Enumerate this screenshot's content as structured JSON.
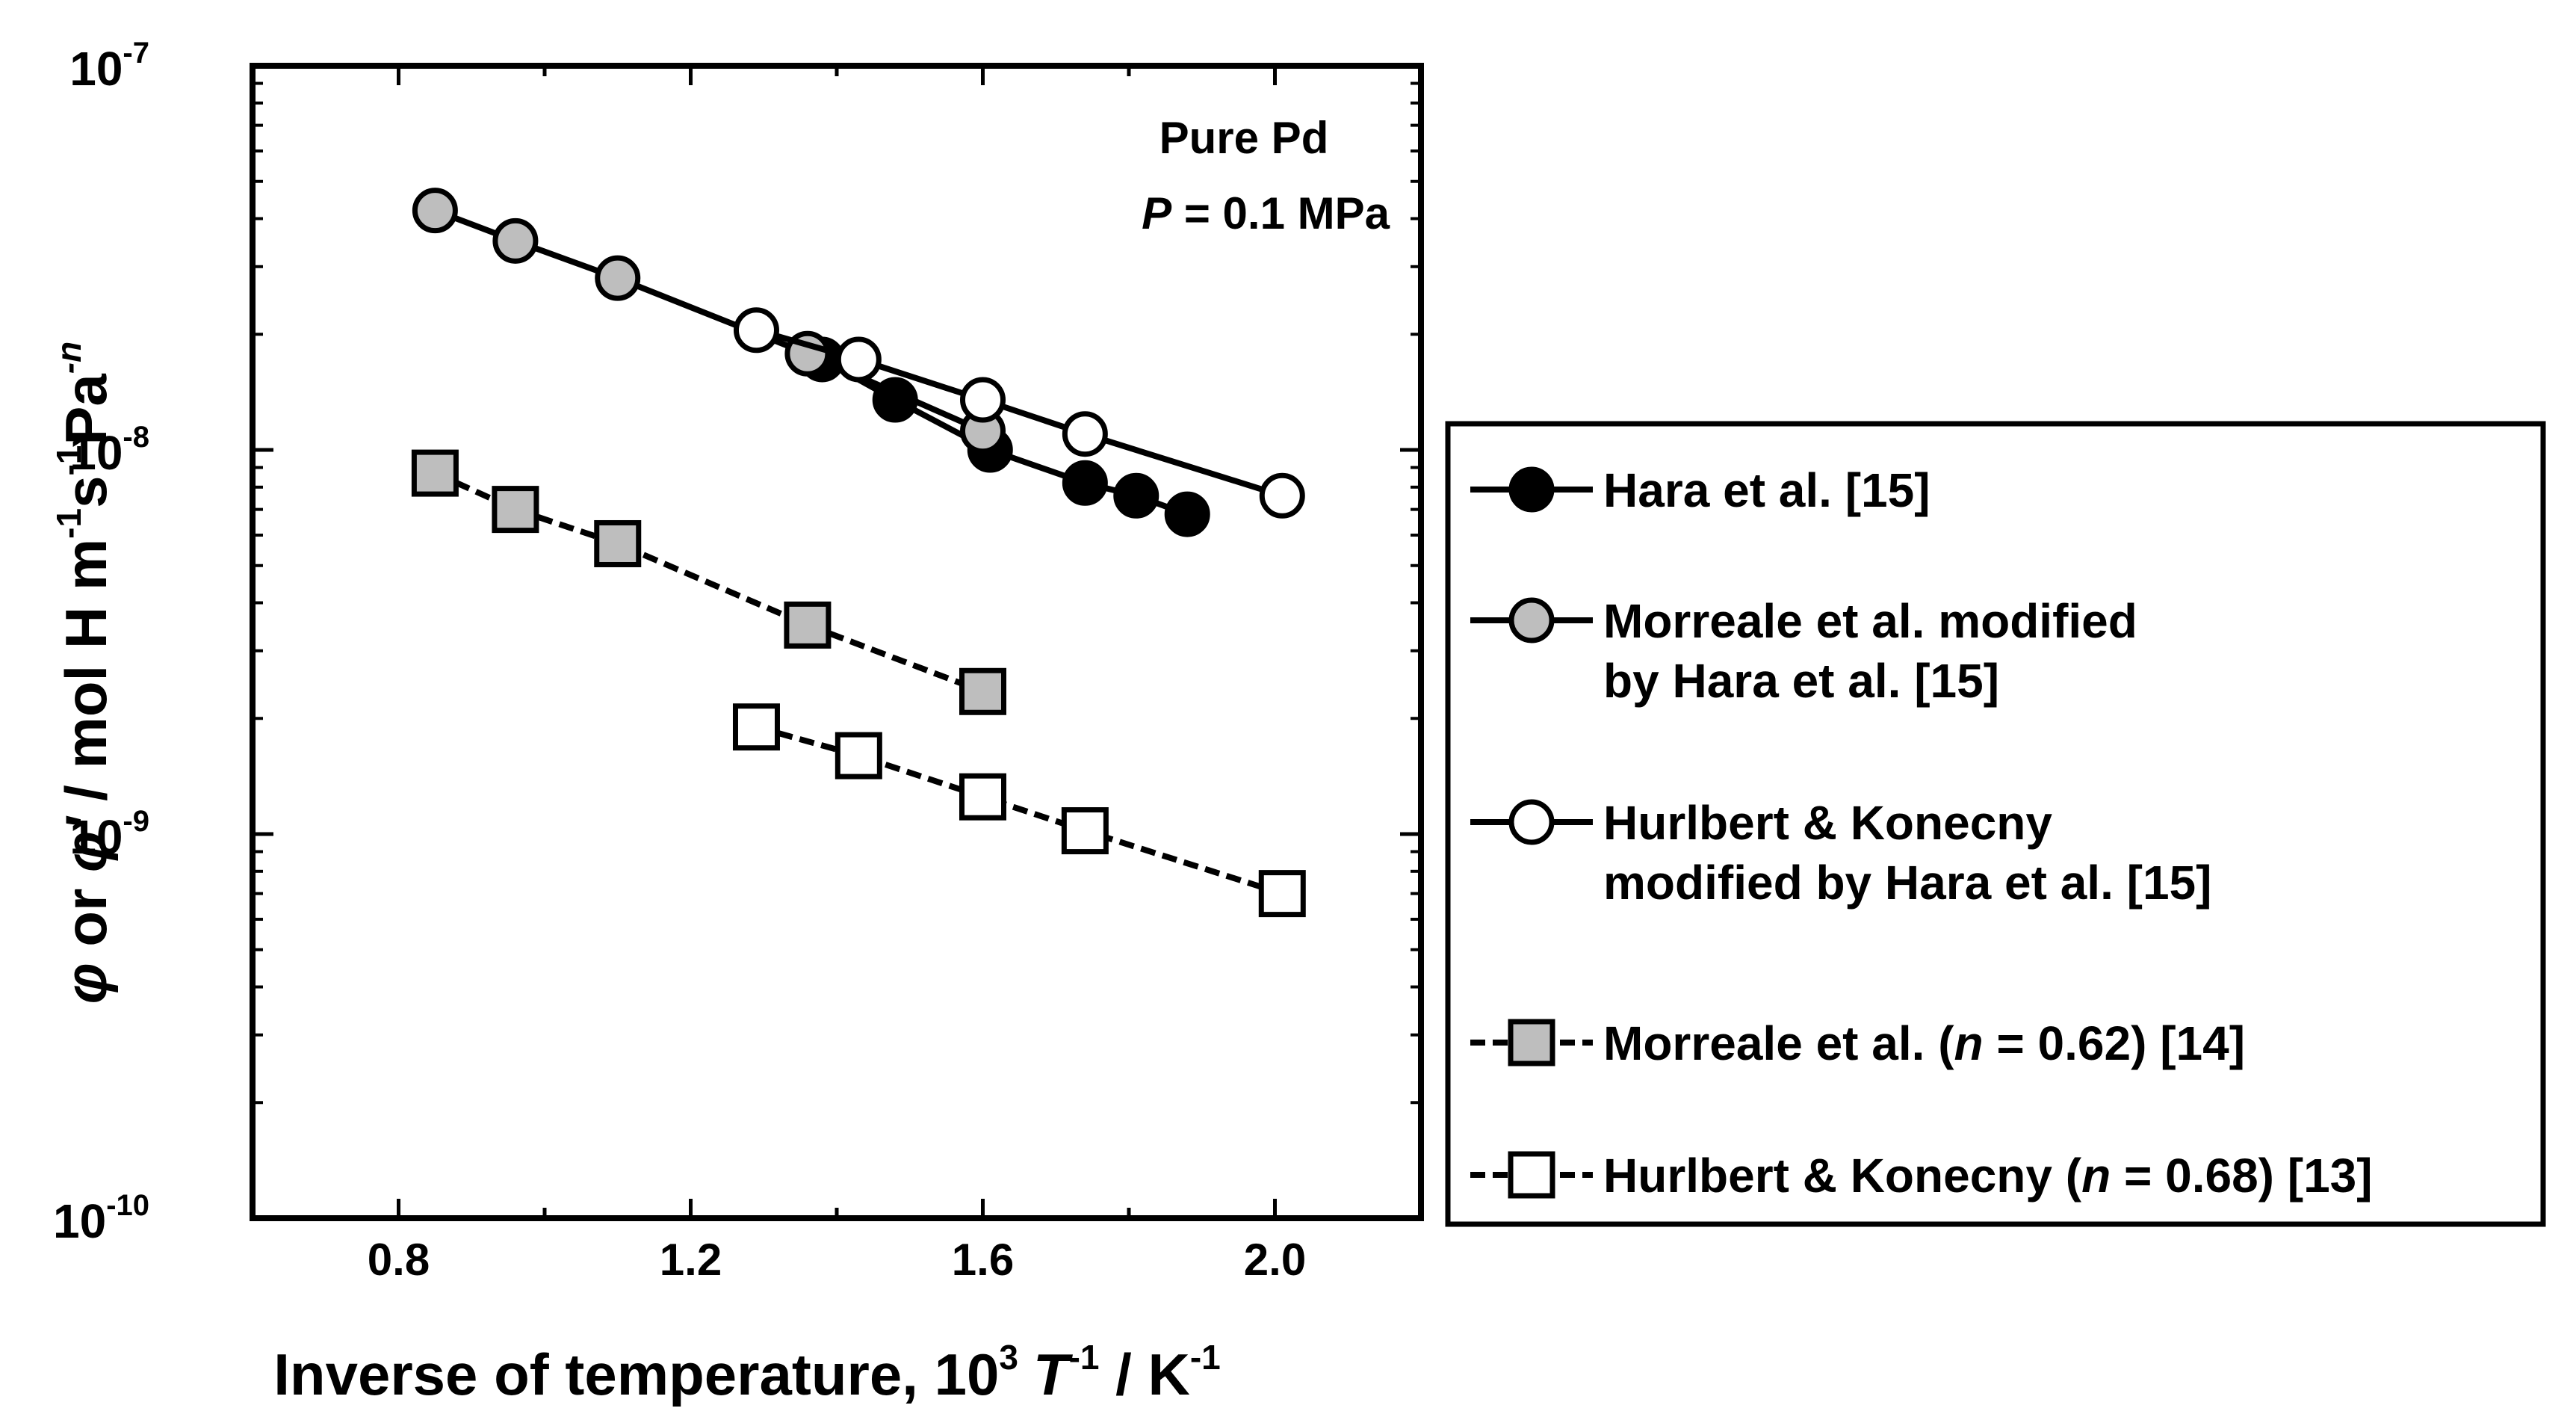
{
  "chart_data": {
    "type": "scatter",
    "title": "",
    "xlabel": {
      "prefix": "Inverse of temperature, 10",
      "power": "3",
      "var": "T",
      "var_power": "-1",
      "unit": " / K",
      "unit_power": "-1"
    },
    "ylabel": {
      "sym1": "φ",
      "or": " or ",
      "sym2": "φ'",
      "unit": " / mol H  m",
      "p1": "-1",
      "s": "s",
      "p2": "-1",
      "pa": "Pa",
      "p3": "-n"
    },
    "xlim": [
      0.6,
      2.2
    ],
    "ylim": [
      1e-10,
      1e-07
    ],
    "yscale": "log",
    "grid": false,
    "x_ticks": [
      "0.8",
      "1.2",
      "1.6",
      "2.0"
    ],
    "x_tick_values": [
      0.8,
      1.2,
      1.6,
      2.0
    ],
    "y_ticks": [
      {
        "base": "10",
        "exp": "-7",
        "value": 1e-07
      },
      {
        "base": "10",
        "exp": "-8",
        "value": 1e-08
      },
      {
        "base": "10",
        "exp": "-9",
        "value": 1e-09
      },
      {
        "base": "10",
        "exp": "-10",
        "value": 1e-10
      }
    ],
    "annotation": {
      "line1": "Pure Pd",
      "line2_var": "P",
      "line2_rest": " = 0.1 MPa"
    },
    "legend_position": "right-outside",
    "series": [
      {
        "name": "Hara et al. [15]",
        "legend_lines": [
          {
            "text": "Hara et al. [15]"
          }
        ],
        "marker": "circle",
        "fill": "#000000",
        "line": "solid",
        "x": [
          1.38,
          1.48,
          1.61,
          1.74,
          1.81,
          1.88
        ],
        "y": [
          1.72e-08,
          1.35e-08,
          1e-08,
          8.2e-09,
          7.6e-09,
          6.8e-09
        ]
      },
      {
        "name": "Morreale et al. modified by Hara et al. [15]",
        "legend_lines": [
          {
            "text": "Morreale et al. modified"
          },
          {
            "text": "by Hara et al. [15]"
          }
        ],
        "marker": "circle",
        "fill": "#bebebe",
        "line": "solid",
        "x": [
          0.85,
          0.96,
          1.1,
          1.36,
          1.6
        ],
        "y": [
          4.2e-08,
          3.5e-08,
          2.8e-08,
          1.78e-08,
          1.12e-08
        ]
      },
      {
        "name": "Hurlbert & Konecny modified by Hara et al. [15]",
        "legend_lines": [
          {
            "text": "Hurlbert & Konecny"
          },
          {
            "text": "modified by Hara et al. [15]"
          }
        ],
        "marker": "circle",
        "fill": "#ffffff",
        "line": "solid",
        "x": [
          1.29,
          1.43,
          1.6,
          1.74,
          2.01
        ],
        "y": [
          2.05e-08,
          1.72e-08,
          1.35e-08,
          1.1e-08,
          7.6e-09
        ]
      },
      {
        "name": "Morreale et al. (n = 0.62) [14]",
        "legend_lines": [
          {
            "pre": "Morreale et al. (",
            "it": "n",
            "post": " = 0.62) [14]"
          }
        ],
        "marker": "square",
        "fill": "#bebebe",
        "line": "dashed",
        "x": [
          0.85,
          0.96,
          1.1,
          1.36,
          1.6
        ],
        "y": [
          8.7e-09,
          7e-09,
          5.7e-09,
          3.5e-09,
          2.35e-09
        ]
      },
      {
        "name": "Hurlbert & Konecny (n = 0.68) [13]",
        "legend_lines": [
          {
            "pre": "Hurlbert & Konecny (",
            "it": "n",
            "post": " = 0.68) [13]"
          }
        ],
        "marker": "square",
        "fill": "#ffffff",
        "line": "dashed",
        "x": [
          1.29,
          1.43,
          1.6,
          1.74,
          2.01
        ],
        "y": [
          1.9e-09,
          1.6e-09,
          1.25e-09,
          1.02e-09,
          7e-10
        ]
      }
    ]
  }
}
